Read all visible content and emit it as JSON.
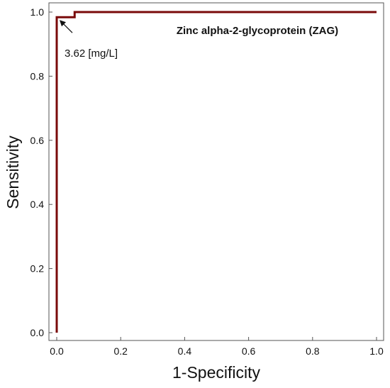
{
  "chart_data": {
    "type": "line",
    "title": "Zinc alpha-2-glycoprotein (ZAG)",
    "xlabel": "1-Specificity",
    "ylabel": "Sensitivity",
    "xlim": [
      0,
      1
    ],
    "ylim": [
      0,
      1
    ],
    "x_ticks": [
      "0.0",
      "0.2",
      "0.4",
      "0.6",
      "0.8",
      "1.0"
    ],
    "y_ticks": [
      "0.0",
      "0.2",
      "0.4",
      "0.6",
      "0.8",
      "1.0"
    ],
    "grid": false,
    "series": [
      {
        "color": "#7a0a0a",
        "points": [
          {
            "x": 0.0,
            "y": 0.0
          },
          {
            "x": 0.0,
            "y": 0.984
          },
          {
            "x": 0.056,
            "y": 0.984
          },
          {
            "x": 0.056,
            "y": 1.0
          },
          {
            "x": 1.0,
            "y": 1.0
          }
        ]
      }
    ],
    "annotations": [
      {
        "text": "3.62 [mg/L]",
        "x": 0.0,
        "y": 0.984
      }
    ]
  }
}
